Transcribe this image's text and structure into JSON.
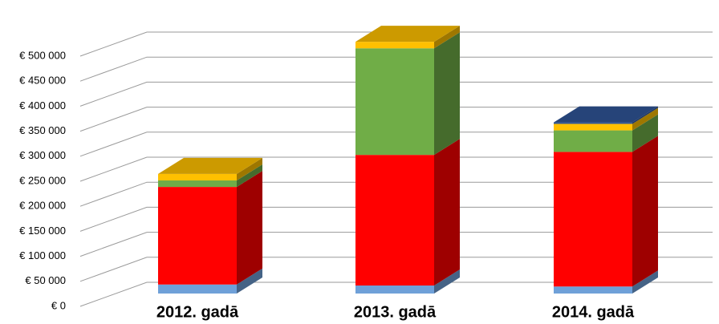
{
  "chart_data": {
    "type": "bar3d_stacked",
    "categories": [
      "2012. gadā",
      "2013. gadā",
      "2014. gadā"
    ],
    "series": [
      {
        "color": "#6fa0d8",
        "values": [
          18000,
          16000,
          14000
        ]
      },
      {
        "color": "#ff0000",
        "values": [
          195000,
          261000,
          269000
        ]
      },
      {
        "color": "#70ad47",
        "values": [
          13000,
          213000,
          43000
        ]
      },
      {
        "color": "#ffc000",
        "values": [
          13000,
          13000,
          13000
        ]
      },
      {
        "color": "#2f5597",
        "values": [
          0,
          0,
          3000
        ]
      }
    ],
    "ylim": [
      0,
      500000
    ],
    "yticks": [
      {
        "value": 0,
        "label": "€ 0"
      },
      {
        "value": 50000,
        "label": "€ 50 000"
      },
      {
        "value": 100000,
        "label": "€ 100 000"
      },
      {
        "value": 150000,
        "label": "€ 150 000"
      },
      {
        "value": 200000,
        "label": "€ 200 000"
      },
      {
        "value": 250000,
        "label": "€ 250 000"
      },
      {
        "value": 300000,
        "label": "€ 300 000"
      },
      {
        "value": 350000,
        "label": "€ 350 000"
      },
      {
        "value": 400000,
        "label": "€ 400 000"
      },
      {
        "value": 450000,
        "label": "€ 450 000"
      },
      {
        "value": 500000,
        "label": "€ 500 000"
      }
    ],
    "grid": true
  }
}
